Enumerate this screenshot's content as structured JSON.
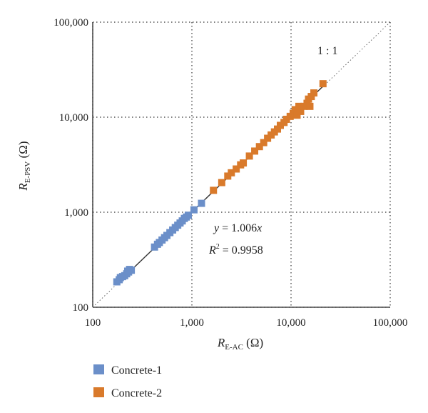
{
  "chart_data": {
    "type": "scatter",
    "x_scale": "log",
    "y_scale": "log",
    "xlim": [
      100,
      100000
    ],
    "ylim": [
      100,
      100000
    ],
    "grid": "dotted",
    "x_ticks": [
      "100",
      "1,000",
      "10,000",
      "100,000"
    ],
    "y_ticks": [
      "100",
      "1,000",
      "10,000",
      "100,000"
    ],
    "xlabel": {
      "symbol": "R",
      "subscript": "E-AC",
      "unit": "(Ω)"
    },
    "ylabel": {
      "symbol": "R",
      "subscript": "E-PSV",
      "unit": "(Ω)"
    },
    "reference_line_label": "1 : 1",
    "fit": {
      "equation_y": "y",
      "equation_rhs": " = 1.006",
      "equation_x": "x",
      "r2_label": "R",
      "r2_sup": "2",
      "r2_value": " = 0.9958",
      "slope": 1.006
    },
    "legend_position": "bottom-left",
    "series": [
      {
        "name": "Concrete-1",
        "color": "#6b8fc9",
        "points": [
          [
            175,
            185
          ],
          [
            185,
            195
          ],
          [
            190,
            205
          ],
          [
            200,
            210
          ],
          [
            210,
            215
          ],
          [
            220,
            225
          ],
          [
            230,
            235
          ],
          [
            245,
            245
          ],
          [
            235,
            250
          ],
          [
            225,
            240
          ],
          [
            420,
            430
          ],
          [
            450,
            460
          ],
          [
            470,
            480
          ],
          [
            500,
            510
          ],
          [
            530,
            540
          ],
          [
            560,
            570
          ],
          [
            600,
            610
          ],
          [
            640,
            650
          ],
          [
            680,
            690
          ],
          [
            720,
            730
          ],
          [
            760,
            770
          ],
          [
            800,
            810
          ],
          [
            840,
            860
          ],
          [
            880,
            890
          ],
          [
            920,
            930
          ],
          [
            1050,
            1060
          ],
          [
            1250,
            1240
          ]
        ]
      },
      {
        "name": "Concrete-2",
        "color": "#d97a2b",
        "points": [
          [
            1650,
            1700
          ],
          [
            2000,
            2050
          ],
          [
            2300,
            2400
          ],
          [
            2500,
            2600
          ],
          [
            2800,
            2850
          ],
          [
            3100,
            3150
          ],
          [
            3300,
            3300
          ],
          [
            3800,
            3900
          ],
          [
            4300,
            4400
          ],
          [
            4800,
            4900
          ],
          [
            5300,
            5400
          ],
          [
            5800,
            6000
          ],
          [
            6300,
            6500
          ],
          [
            6800,
            7000
          ],
          [
            7300,
            7500
          ],
          [
            7800,
            8200
          ],
          [
            8500,
            8800
          ],
          [
            9000,
            9500
          ],
          [
            9800,
            10200
          ],
          [
            10500,
            11000
          ],
          [
            11000,
            12000
          ],
          [
            12000,
            13000
          ],
          [
            11500,
            10500
          ],
          [
            12500,
            11500
          ],
          [
            13500,
            13000
          ],
          [
            14500,
            14000
          ],
          [
            15000,
            15500
          ],
          [
            16000,
            16500
          ],
          [
            17000,
            18000
          ],
          [
            15500,
            13000
          ],
          [
            21000,
            22500
          ]
        ]
      }
    ]
  }
}
